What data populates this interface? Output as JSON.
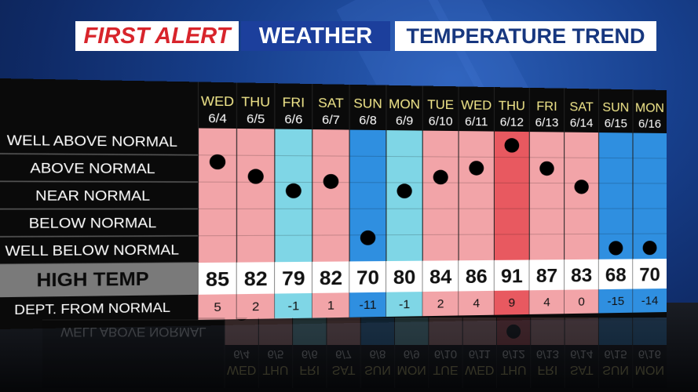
{
  "header": {
    "first_alert": "FIRST ALERT",
    "weather": "WEATHER",
    "title": "TEMPERATURE TREND"
  },
  "colors": {
    "brand_red": "#d8242b",
    "brand_blue": "#1c3f9c",
    "above_normal": "#f2a4a8",
    "below_normal": "#7fd6e6",
    "much_below": "#2f8fe0",
    "much_above": "#e85960"
  },
  "chart_data": {
    "type": "table",
    "title": "TEMPERATURE TREND",
    "row_labels": [
      "WELL ABOVE NORMAL",
      "ABOVE NORMAL",
      "NEAR NORMAL",
      "BELOW NORMAL",
      "WELL BELOW NORMAL"
    ],
    "high_temp_label": "HIGH TEMP",
    "dept_label": "DEPT. FROM NORMAL",
    "days": [
      {
        "day": "WED",
        "date": "6/4",
        "high": 85,
        "dept": 5
      },
      {
        "day": "THU",
        "date": "6/5",
        "high": 82,
        "dept": 2
      },
      {
        "day": "FRI",
        "date": "6/6",
        "high": 79,
        "dept": -1
      },
      {
        "day": "SAT",
        "date": "6/7",
        "high": 82,
        "dept": 1
      },
      {
        "day": "SUN",
        "date": "6/8",
        "high": 70,
        "dept": -11
      },
      {
        "day": "MON",
        "date": "6/9",
        "high": 80,
        "dept": -1
      },
      {
        "day": "TUE",
        "date": "6/10",
        "high": 84,
        "dept": 2
      },
      {
        "day": "WED",
        "date": "6/11",
        "high": 86,
        "dept": 4
      },
      {
        "day": "THU",
        "date": "6/12",
        "high": 91,
        "dept": 9
      },
      {
        "day": "FRI",
        "date": "6/13",
        "high": 87,
        "dept": 4
      },
      {
        "day": "SAT",
        "date": "6/14",
        "high": 83,
        "dept": 0
      },
      {
        "day": "SUN",
        "date": "6/15",
        "high": 68,
        "dept": -15
      },
      {
        "day": "MON",
        "date": "6/16",
        "high": 70,
        "dept": -14
      }
    ]
  }
}
